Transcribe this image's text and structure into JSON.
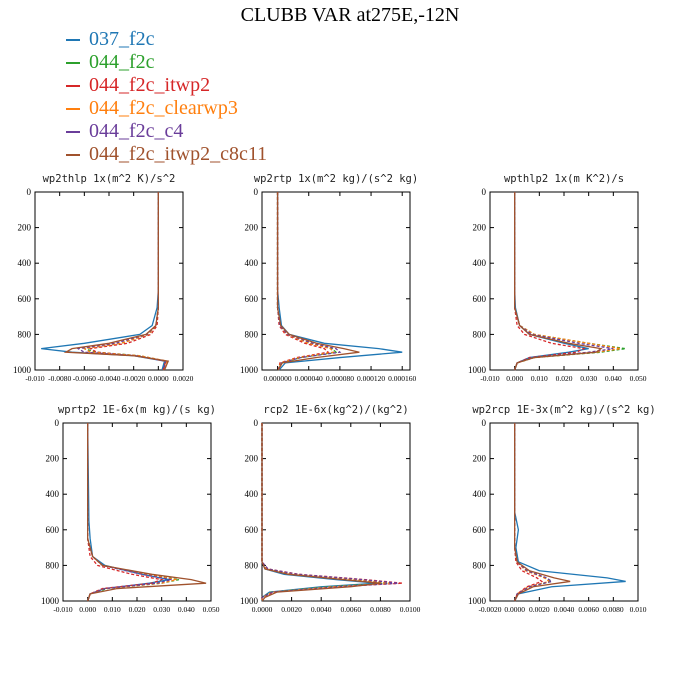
{
  "title": "CLUBB VAR at275E,-12N",
  "legend": [
    {
      "label": "037_f2c",
      "color": "#1f77b4"
    },
    {
      "label": "044_f2c",
      "color": "#2ca02c"
    },
    {
      "label": "044_f2c_itwp2",
      "color": "#d62728"
    },
    {
      "label": "044_f2c_clearwp3",
      "color": "#ff7f0e"
    },
    {
      "label": "044_f2c_c4",
      "color": "#6a3d9a"
    },
    {
      "label": "044_f2c_itwp2_c8c11",
      "color": "#a0522d"
    }
  ],
  "chart_data": [
    {
      "type": "line",
      "title": "wp2thlp  1x(m^2 K)/s^2",
      "xlim": [
        -0.01,
        0.002
      ],
      "ylim": [
        0,
        1000
      ],
      "y_inverted": true,
      "xticks": [
        "-0.010",
        "-0.0080",
        "-0.0060",
        "-0.0040",
        "-0.0020",
        "0.0000",
        "0.0020"
      ],
      "xtick_values": [
        -0.01,
        -0.008,
        -0.006,
        -0.004,
        -0.002,
        0.0,
        0.002
      ],
      "yticks": [
        "0",
        "200",
        "400",
        "600",
        "800",
        "1000"
      ],
      "y": [
        0,
        550,
        650,
        750,
        800,
        850,
        880,
        900,
        920,
        950,
        1000
      ],
      "series": [
        {
          "x": [
            0,
            0,
            -0.0001,
            -0.0005,
            -0.0015,
            -0.006,
            -0.0095,
            -0.007,
            -0.002,
            0.0005,
            0.0003
          ],
          "style": "solid"
        },
        {
          "x": [
            0,
            0,
            0,
            -0.0002,
            -0.0008,
            -0.003,
            -0.006,
            -0.005,
            -0.0015,
            0.0006,
            0.0004
          ],
          "style": "dashed"
        },
        {
          "x": [
            0,
            0,
            0,
            -0.0001,
            -0.0006,
            -0.0025,
            -0.0055,
            -0.005,
            -0.0018,
            0.0006,
            0.0004
          ],
          "style": "dashed"
        },
        {
          "x": [
            0,
            0,
            0,
            -0.0002,
            -0.0008,
            -0.003,
            -0.006,
            -0.0055,
            -0.0015,
            0.0007,
            0.0004
          ],
          "style": "dashed"
        },
        {
          "x": [
            0,
            0,
            0,
            -0.0002,
            -0.0009,
            -0.0035,
            -0.0065,
            -0.006,
            -0.0018,
            0.0006,
            0.0004
          ],
          "style": "dashed"
        },
        {
          "x": [
            0,
            0,
            0,
            -0.0002,
            -0.001,
            -0.004,
            -0.007,
            -0.0075,
            -0.002,
            0.0008,
            0.0005
          ],
          "style": "solid"
        }
      ]
    },
    {
      "type": "line",
      "title": "wp2rtp  1x(m^2 kg)/(s^2 kg)",
      "xlim": [
        -2e-05,
        0.00017
      ],
      "ylim": [
        0,
        1000
      ],
      "y_inverted": true,
      "xticks": [
        "0.000000",
        "0.000040",
        "0.000080",
        "0.000120",
        "0.000160"
      ],
      "xtick_values": [
        0.0,
        4e-05,
        8e-05,
        0.00012,
        0.00016
      ],
      "yticks": [
        "0",
        "200",
        "400",
        "600",
        "800",
        "1000"
      ],
      "y": [
        0,
        550,
        650,
        750,
        800,
        850,
        880,
        900,
        930,
        960,
        1000
      ],
      "series": [
        {
          "x": [
            0,
            0,
            2e-06,
            5e-06,
            1.5e-05,
            6e-05,
            0.00013,
            0.00016,
            8e-05,
            1e-05,
            2e-06
          ],
          "style": "solid"
        },
        {
          "x": [
            0,
            0,
            0,
            3e-06,
            1.2e-05,
            4e-05,
            7e-05,
            7.5e-05,
            3e-05,
            5e-06,
            1e-06
          ],
          "style": "dashed"
        },
        {
          "x": [
            0,
            0,
            0,
            2e-06,
            1e-05,
            3.5e-05,
            6e-05,
            6.5e-05,
            2.5e-05,
            3e-06,
            1e-06
          ],
          "style": "dashed"
        },
        {
          "x": [
            0,
            0,
            0,
            3e-06,
            1.2e-05,
            4e-05,
            6.8e-05,
            7.2e-05,
            2.8e-05,
            4e-06,
            1e-06
          ],
          "style": "dashed"
        },
        {
          "x": [
            0,
            0,
            0,
            3e-06,
            1.3e-05,
            4.5e-05,
            7.5e-05,
            8e-05,
            3e-05,
            5e-06,
            1e-06
          ],
          "style": "dashed"
        },
        {
          "x": [
            0,
            0,
            0,
            4e-06,
            1.5e-05,
            5e-05,
            8.5e-05,
            0.000105,
            5e-05,
            6e-06,
            1e-06
          ],
          "style": "solid"
        }
      ]
    },
    {
      "type": "line",
      "title": "wpthlp2  1x(m K^2)/s",
      "xlim": [
        -0.01,
        0.05
      ],
      "ylim": [
        0,
        1000
      ],
      "y_inverted": true,
      "xticks": [
        "-0.010",
        "0.000",
        "0.010",
        "0.020",
        "0.030",
        "0.040",
        "0.050"
      ],
      "xtick_values": [
        -0.01,
        0.0,
        0.01,
        0.02,
        0.03,
        0.04,
        0.05
      ],
      "yticks": [
        "0",
        "200",
        "400",
        "600",
        "800",
        "1000"
      ],
      "y": [
        0,
        550,
        650,
        750,
        800,
        850,
        880,
        900,
        930,
        960,
        1000
      ],
      "series": [
        {
          "x": [
            0,
            0,
            0.0003,
            0.002,
            0.006,
            0.02,
            0.03,
            0.022,
            0.006,
            0.001,
            0
          ],
          "style": "solid"
        },
        {
          "x": [
            0,
            0,
            0,
            0.002,
            0.008,
            0.03,
            0.045,
            0.035,
            0.008,
            0.001,
            0
          ],
          "style": "dashed"
        },
        {
          "x": [
            0,
            0,
            0,
            0.001,
            0.004,
            0.015,
            0.028,
            0.025,
            0.006,
            0.001,
            0
          ],
          "style": "dashed"
        },
        {
          "x": [
            0,
            0,
            0,
            0.002,
            0.008,
            0.03,
            0.043,
            0.033,
            0.008,
            0.001,
            0
          ],
          "style": "dashed"
        },
        {
          "x": [
            0,
            0,
            0,
            0.002,
            0.007,
            0.026,
            0.04,
            0.03,
            0.007,
            0.001,
            0
          ],
          "style": "dashed"
        },
        {
          "x": [
            0,
            0,
            0,
            0.002,
            0.006,
            0.022,
            0.035,
            0.033,
            0.008,
            0.001,
            0
          ],
          "style": "solid"
        }
      ]
    },
    {
      "type": "line",
      "title": "wprtp2  1E-6x(m kg)/(s kg)",
      "xlim": [
        -0.01,
        0.05
      ],
      "ylim": [
        0,
        1000
      ],
      "y_inverted": true,
      "xticks": [
        "-0.010",
        "0.000",
        "0.010",
        "0.020",
        "0.030",
        "0.040",
        "0.050"
      ],
      "xtick_values": [
        -0.01,
        0.0,
        0.01,
        0.02,
        0.03,
        0.04,
        0.05
      ],
      "yticks": [
        "0",
        "200",
        "400",
        "600",
        "800",
        "1000"
      ],
      "y": [
        0,
        550,
        650,
        750,
        800,
        850,
        880,
        900,
        930,
        960,
        1000
      ],
      "series": [
        {
          "x": [
            0,
            0.0005,
            0.001,
            0.002,
            0.007,
            0.022,
            0.033,
            0.025,
            0.007,
            0.001,
            0
          ],
          "style": "solid"
        },
        {
          "x": [
            0,
            0,
            0,
            0.002,
            0.006,
            0.024,
            0.037,
            0.03,
            0.008,
            0.001,
            0
          ],
          "style": "dashed"
        },
        {
          "x": [
            0,
            0,
            0,
            0.001,
            0.004,
            0.018,
            0.03,
            0.026,
            0.006,
            0.001,
            0
          ],
          "style": "dashed"
        },
        {
          "x": [
            0,
            0,
            0,
            0.002,
            0.006,
            0.024,
            0.036,
            0.03,
            0.007,
            0.001,
            0
          ],
          "style": "dashed"
        },
        {
          "x": [
            0,
            0,
            0,
            0.002,
            0.006,
            0.022,
            0.034,
            0.028,
            0.007,
            0.001,
            0
          ],
          "style": "dashed"
        },
        {
          "x": [
            0,
            0,
            0,
            0.002,
            0.006,
            0.026,
            0.042,
            0.048,
            0.012,
            0.001,
            0
          ],
          "style": "solid"
        }
      ]
    },
    {
      "type": "line",
      "title": "rcp2  1E-6x(kg^2)/(kg^2)",
      "xlim": [
        0,
        0.01
      ],
      "ylim": [
        0,
        1000
      ],
      "y_inverted": true,
      "xticks": [
        "0.0000",
        "0.0020",
        "0.0040",
        "0.0060",
        "0.0080",
        "0.0100"
      ],
      "xtick_values": [
        0,
        0.002,
        0.004,
        0.006,
        0.008,
        0.01
      ],
      "yticks": [
        "0",
        "200",
        "400",
        "600",
        "800",
        "1000"
      ],
      "y": [
        0,
        700,
        780,
        820,
        850,
        880,
        900,
        920,
        950,
        980,
        1000
      ],
      "series": [
        {
          "x": [
            0,
            0,
            0,
            0.0002,
            0.0015,
            0.005,
            0.0078,
            0.004,
            0.0005,
            0,
            0
          ],
          "style": "solid"
        },
        {
          "x": [
            0,
            0,
            0,
            0.0003,
            0.002,
            0.006,
            0.0085,
            0.0045,
            0.0006,
            0,
            0
          ],
          "style": "dashed"
        },
        {
          "x": [
            0,
            0,
            0,
            0.0004,
            0.0025,
            0.007,
            0.0095,
            0.005,
            0.0008,
            0,
            0
          ],
          "style": "dashed"
        },
        {
          "x": [
            0,
            0,
            0,
            0.0003,
            0.0022,
            0.0065,
            0.0088,
            0.0048,
            0.0007,
            0,
            0
          ],
          "style": "dashed"
        },
        {
          "x": [
            0,
            0,
            0,
            0.0004,
            0.0024,
            0.0068,
            0.0092,
            0.0052,
            0.0007,
            0,
            0
          ],
          "style": "dashed"
        },
        {
          "x": [
            0,
            0,
            0,
            0.0002,
            0.0018,
            0.0055,
            0.008,
            0.006,
            0.001,
            0.0002,
            0
          ],
          "style": "solid"
        }
      ]
    },
    {
      "type": "line",
      "title": "wp2rcp  1E-3x(m^2 kg)/(s^2 kg)",
      "xlim": [
        -0.002,
        0.01
      ],
      "ylim": [
        0,
        1000
      ],
      "y_inverted": true,
      "xticks": [
        "-0.0020",
        "0.0000",
        "0.0020",
        "0.0040",
        "0.0060",
        "0.0080",
        "0.010"
      ],
      "xtick_values": [
        -0.002,
        0.0,
        0.002,
        0.004,
        0.006,
        0.008,
        0.01
      ],
      "yticks": [
        "0",
        "200",
        "400",
        "600",
        "800",
        "1000"
      ],
      "y": [
        0,
        500,
        600,
        700,
        780,
        830,
        870,
        890,
        920,
        960,
        1000
      ],
      "series": [
        {
          "x": [
            0,
            0,
            0.0003,
            0.0001,
            0.0003,
            0.002,
            0.0075,
            0.009,
            0.003,
            0.0003,
            0
          ],
          "style": "solid"
        },
        {
          "x": [
            0,
            0,
            0,
            0,
            0.0002,
            0.001,
            0.0025,
            0.003,
            0.0012,
            0.0002,
            0
          ],
          "style": "dashed"
        },
        {
          "x": [
            0,
            0,
            0,
            0,
            0.0001,
            0.0006,
            0.0018,
            0.0022,
            0.001,
            0.0002,
            0
          ],
          "style": "dashed"
        },
        {
          "x": [
            0,
            0,
            0,
            0,
            0.0002,
            0.0009,
            0.0024,
            0.0028,
            0.0011,
            0.0002,
            0
          ],
          "style": "dashed"
        },
        {
          "x": [
            0,
            0,
            0,
            0,
            0.0002,
            0.001,
            0.0026,
            0.003,
            0.0012,
            0.0002,
            0
          ],
          "style": "dashed"
        },
        {
          "x": [
            0,
            0,
            0,
            0,
            0.0002,
            0.0012,
            0.0032,
            0.0045,
            0.0015,
            0.0003,
            0
          ],
          "style": "solid"
        }
      ]
    }
  ]
}
